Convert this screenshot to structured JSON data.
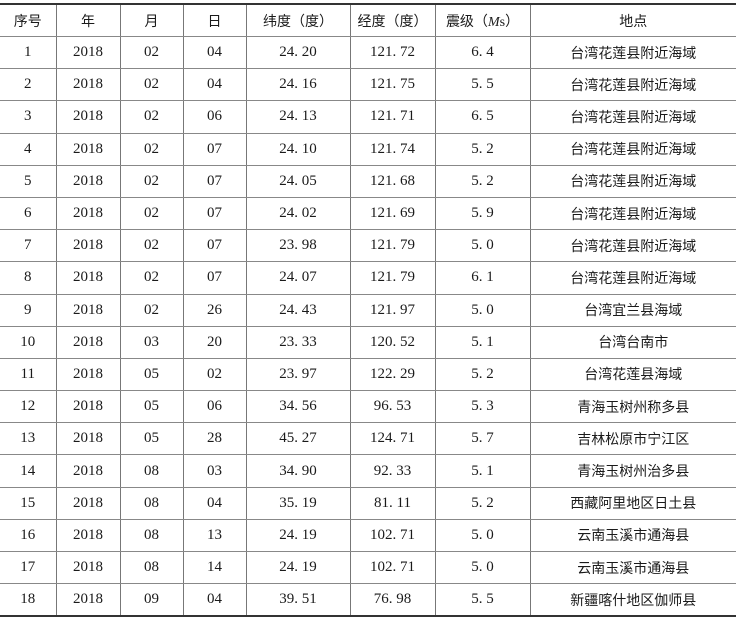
{
  "table": {
    "headers": [
      "序号",
      "年",
      "月",
      "日",
      "纬度（度）",
      "经度（度）",
      "震级（Ms）",
      "地点"
    ],
    "magnitude_header": {
      "prefix": "震级（",
      "unit_italic": "M",
      "unit_sub": "s",
      "suffix": "）"
    },
    "rows": [
      [
        "1",
        "2018",
        "02",
        "04",
        "24. 20",
        "121. 72",
        "6. 4",
        "台湾花莲县附近海域"
      ],
      [
        "2",
        "2018",
        "02",
        "04",
        "24. 16",
        "121. 75",
        "5. 5",
        "台湾花莲县附近海域"
      ],
      [
        "3",
        "2018",
        "02",
        "06",
        "24. 13",
        "121. 71",
        "6. 5",
        "台湾花莲县附近海域"
      ],
      [
        "4",
        "2018",
        "02",
        "07",
        "24. 10",
        "121. 74",
        "5. 2",
        "台湾花莲县附近海域"
      ],
      [
        "5",
        "2018",
        "02",
        "07",
        "24. 05",
        "121. 68",
        "5. 2",
        "台湾花莲县附近海域"
      ],
      [
        "6",
        "2018",
        "02",
        "07",
        "24. 02",
        "121. 69",
        "5. 9",
        "台湾花莲县附近海域"
      ],
      [
        "7",
        "2018",
        "02",
        "07",
        "23. 98",
        "121. 79",
        "5. 0",
        "台湾花莲县附近海域"
      ],
      [
        "8",
        "2018",
        "02",
        "07",
        "24. 07",
        "121. 79",
        "6. 1",
        "台湾花莲县附近海域"
      ],
      [
        "9",
        "2018",
        "02",
        "26",
        "24. 43",
        "121. 97",
        "5. 0",
        "台湾宜兰县海域"
      ],
      [
        "10",
        "2018",
        "03",
        "20",
        "23. 33",
        "120. 52",
        "5. 1",
        "台湾台南市"
      ],
      [
        "11",
        "2018",
        "05",
        "02",
        "23. 97",
        "122. 29",
        "5. 2",
        "台湾花莲县海域"
      ],
      [
        "12",
        "2018",
        "05",
        "06",
        "34. 56",
        "96. 53",
        "5. 3",
        "青海玉树州称多县"
      ],
      [
        "13",
        "2018",
        "05",
        "28",
        "45. 27",
        "124. 71",
        "5. 7",
        "吉林松原市宁江区"
      ],
      [
        "14",
        "2018",
        "08",
        "03",
        "34. 90",
        "92. 33",
        "5. 1",
        "青海玉树州治多县"
      ],
      [
        "15",
        "2018",
        "08",
        "04",
        "35. 19",
        "81. 11",
        "5. 2",
        "西藏阿里地区日土县"
      ],
      [
        "16",
        "2018",
        "08",
        "13",
        "24. 19",
        "102. 71",
        "5. 0",
        "云南玉溪市通海县"
      ],
      [
        "17",
        "2018",
        "08",
        "14",
        "24. 19",
        "102. 71",
        "5. 0",
        "云南玉溪市通海县"
      ],
      [
        "18",
        "2018",
        "09",
        "04",
        "39. 51",
        "76. 98",
        "5. 5",
        "新疆喀什地区伽师县"
      ]
    ]
  }
}
